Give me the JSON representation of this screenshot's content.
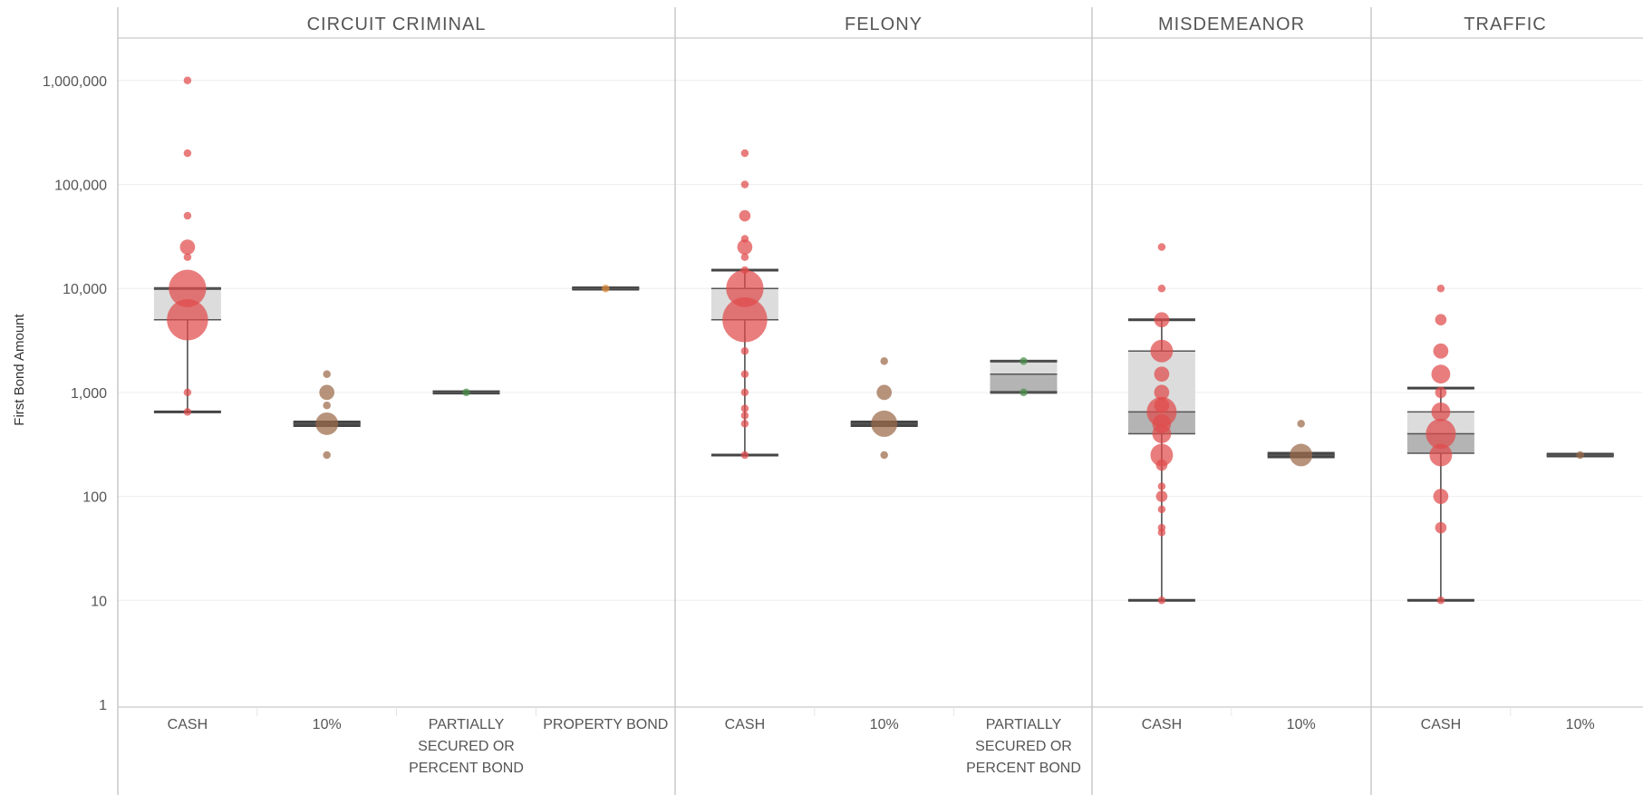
{
  "chart_data": {
    "type": "box",
    "ylabel": "First Bond Amount",
    "yscale": "log",
    "ylim": [
      1,
      3000000
    ],
    "yticks": [
      {
        "value": 1,
        "label": "1"
      },
      {
        "value": 10,
        "label": "10"
      },
      {
        "value": 100,
        "label": "100"
      },
      {
        "value": 1000,
        "label": "1,000"
      },
      {
        "value": 10000,
        "label": "10,000"
      },
      {
        "value": 100000,
        "label": "100,000"
      },
      {
        "value": 1000000,
        "label": "1,000,000"
      }
    ],
    "colors": {
      "CASH": "#e04b4b",
      "10%": "#9b6a4a",
      "PARTIALLY SECURED OR PERCENT BOND": "#4a8f4a",
      "PROPERTY BOND": "#e08a3a"
    },
    "panels": [
      {
        "title": "CIRCUIT CRIMINAL",
        "categories": [
          {
            "label": [
              "CASH"
            ],
            "color_key": "CASH",
            "box": {
              "whisker_low": 650,
              "q1": 5000,
              "median": 5000,
              "q3": 10000,
              "whisker_high": 10000,
              "outer_low": 650,
              "outer_high": 10000
            },
            "points": [
              {
                "y": 1000000,
                "size": 1
              },
              {
                "y": 200000,
                "size": 1
              },
              {
                "y": 50000,
                "size": 1
              },
              {
                "y": 25000,
                "size": 3
              },
              {
                "y": 20000,
                "size": 1
              },
              {
                "y": 10000,
                "size": 9
              },
              {
                "y": 5000,
                "size": 10
              },
              {
                "y": 1000,
                "size": 1
              },
              {
                "y": 650,
                "size": 1
              }
            ]
          },
          {
            "label": [
              "10%"
            ],
            "color_key": "10%",
            "box": {
              "whisker_low": 500,
              "q1": 500,
              "median": 500,
              "q3": 500,
              "whisker_high": 500,
              "outer_low": 480,
              "outer_high": 520
            },
            "points": [
              {
                "y": 1500,
                "size": 1
              },
              {
                "y": 1000,
                "size": 3
              },
              {
                "y": 750,
                "size": 1
              },
              {
                "y": 500,
                "size": 5
              },
              {
                "y": 250,
                "size": 1
              }
            ]
          },
          {
            "label": [
              "PARTIALLY",
              "SECURED OR",
              "PERCENT BOND"
            ],
            "color_key": "PARTIALLY SECURED OR PERCENT BOND",
            "box": {
              "whisker_low": 1000,
              "q1": 1000,
              "median": 1000,
              "q3": 1000,
              "whisker_high": 1000,
              "outer_low": 985,
              "outer_high": 1015
            },
            "points": [
              {
                "y": 1000,
                "size": 1
              }
            ]
          },
          {
            "label": [
              "PROPERTY BOND"
            ],
            "color_key": "PROPERTY BOND",
            "box": {
              "whisker_low": 10000,
              "q1": 10000,
              "median": 10000,
              "q3": 10000,
              "whisker_high": 10000,
              "outer_low": 9850,
              "outer_high": 10150
            },
            "points": [
              {
                "y": 10000,
                "size": 1
              }
            ]
          }
        ]
      },
      {
        "title": "FELONY",
        "categories": [
          {
            "label": [
              "CASH"
            ],
            "color_key": "CASH",
            "box": {
              "whisker_low": 250,
              "q1": 5000,
              "median": 5000,
              "q3": 10000,
              "whisker_high": 15000,
              "outer_low": 250,
              "outer_high": 15000
            },
            "points": [
              {
                "y": 200000,
                "size": 1
              },
              {
                "y": 100000,
                "size": 1
              },
              {
                "y": 50000,
                "size": 2
              },
              {
                "y": 30000,
                "size": 1
              },
              {
                "y": 25000,
                "size": 3
              },
              {
                "y": 20000,
                "size": 1
              },
              {
                "y": 15000,
                "size": 1
              },
              {
                "y": 10000,
                "size": 9
              },
              {
                "y": 5000,
                "size": 11
              },
              {
                "y": 2500,
                "size": 1
              },
              {
                "y": 1500,
                "size": 1
              },
              {
                "y": 1000,
                "size": 1
              },
              {
                "y": 700,
                "size": 1
              },
              {
                "y": 600,
                "size": 1
              },
              {
                "y": 500,
                "size": 1
              },
              {
                "y": 250,
                "size": 1
              }
            ]
          },
          {
            "label": [
              "10%"
            ],
            "color_key": "10%",
            "box": {
              "whisker_low": 500,
              "q1": 500,
              "median": 500,
              "q3": 500,
              "whisker_high": 500,
              "outer_low": 480,
              "outer_high": 520
            },
            "points": [
              {
                "y": 2000,
                "size": 1
              },
              {
                "y": 1000,
                "size": 3
              },
              {
                "y": 500,
                "size": 6
              },
              {
                "y": 250,
                "size": 1
              }
            ]
          },
          {
            "label": [
              "PARTIALLY",
              "SECURED OR",
              "PERCENT BOND"
            ],
            "color_key": "PARTIALLY SECURED OR PERCENT BOND",
            "box": {
              "whisker_low": 1000,
              "q1": 1000,
              "median": 1500,
              "q3": 2000,
              "whisker_high": 2000,
              "outer_low": 1000,
              "outer_high": 2000
            },
            "points": [
              {
                "y": 2000,
                "size": 1
              },
              {
                "y": 1000,
                "size": 1
              }
            ]
          }
        ]
      },
      {
        "title": "MISDEMEANOR",
        "categories": [
          {
            "label": [
              "CASH"
            ],
            "color_key": "CASH",
            "box": {
              "whisker_low": 10,
              "q1": 400,
              "median": 650,
              "q3": 2500,
              "whisker_high": 5000,
              "outer_low": 10,
              "outer_high": 5000
            },
            "points": [
              {
                "y": 25000,
                "size": 1
              },
              {
                "y": 10000,
                "size": 1
              },
              {
                "y": 5000,
                "size": 3
              },
              {
                "y": 2500,
                "size": 5
              },
              {
                "y": 1500,
                "size": 3
              },
              {
                "y": 1000,
                "size": 3
              },
              {
                "y": 750,
                "size": 3
              },
              {
                "y": 650,
                "size": 7
              },
              {
                "y": 500,
                "size": 4
              },
              {
                "y": 400,
                "size": 4
              },
              {
                "y": 250,
                "size": 5
              },
              {
                "y": 200,
                "size": 2
              },
              {
                "y": 125,
                "size": 1
              },
              {
                "y": 100,
                "size": 2
              },
              {
                "y": 75,
                "size": 1
              },
              {
                "y": 50,
                "size": 1
              },
              {
                "y": 45,
                "size": 1
              },
              {
                "y": 10,
                "size": 1
              }
            ]
          },
          {
            "label": [
              "10%"
            ],
            "color_key": "10%",
            "box": {
              "whisker_low": 250,
              "q1": 250,
              "median": 250,
              "q3": 250,
              "whisker_high": 250,
              "outer_low": 240,
              "outer_high": 260
            },
            "points": [
              {
                "y": 500,
                "size": 1
              },
              {
                "y": 250,
                "size": 5
              }
            ]
          }
        ]
      },
      {
        "title": "TRAFFIC",
        "categories": [
          {
            "label": [
              "CASH"
            ],
            "color_key": "CASH",
            "box": {
              "whisker_low": 10,
              "q1": 260,
              "median": 400,
              "q3": 650,
              "whisker_high": 1100,
              "outer_low": 10,
              "outer_high": 1100
            },
            "points": [
              {
                "y": 10000,
                "size": 1
              },
              {
                "y": 5000,
                "size": 2
              },
              {
                "y": 2500,
                "size": 3
              },
              {
                "y": 1500,
                "size": 4
              },
              {
                "y": 1000,
                "size": 2
              },
              {
                "y": 650,
                "size": 4
              },
              {
                "y": 400,
                "size": 7
              },
              {
                "y": 250,
                "size": 5
              },
              {
                "y": 100,
                "size": 3
              },
              {
                "y": 50,
                "size": 2
              },
              {
                "y": 10,
                "size": 1
              }
            ]
          },
          {
            "label": [
              "10%"
            ],
            "color_key": "10%",
            "box": {
              "whisker_low": 250,
              "q1": 250,
              "median": 250,
              "q3": 250,
              "whisker_high": 250,
              "outer_low": 245,
              "outer_high": 255
            },
            "points": [
              {
                "y": 250,
                "size": 1
              }
            ]
          }
        ]
      }
    ]
  }
}
